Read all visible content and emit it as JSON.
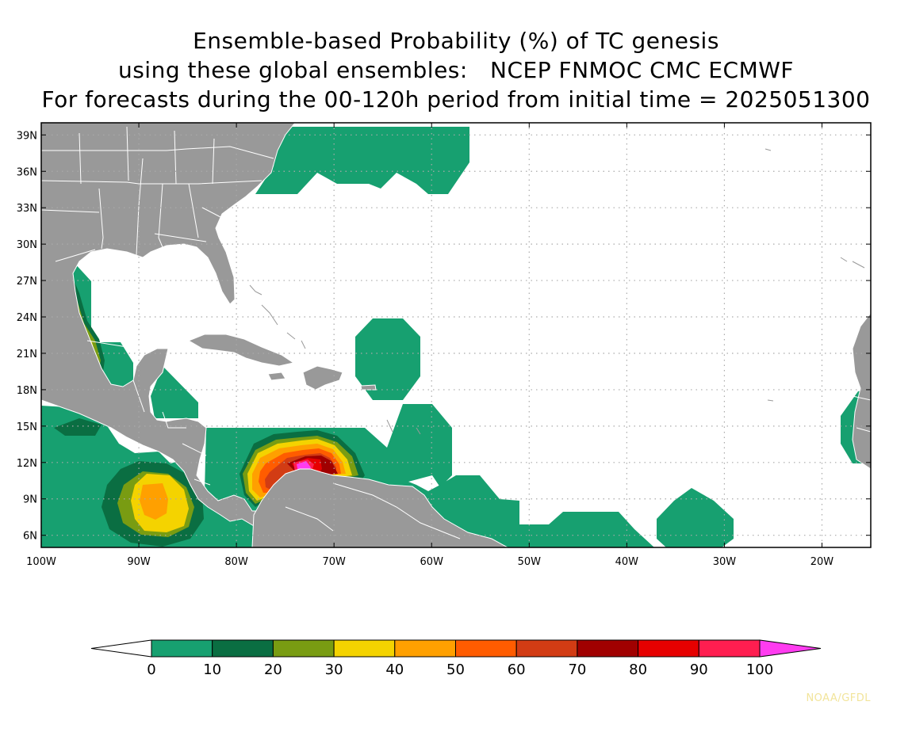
{
  "title": {
    "line1": "Ensemble-based Probability (%) of TC genesis",
    "line2": "using these global ensembles:   NCEP FNMOC CMC ECMWF",
    "line3": "For forecasts during the 00-120h period from initial time = 2025051300"
  },
  "map": {
    "lon_range": [
      -100,
      -15
    ],
    "lat_range": [
      5,
      40
    ],
    "lat_ticks": [
      {
        "value": 39,
        "label": "39N"
      },
      {
        "value": 36,
        "label": "36N"
      },
      {
        "value": 33,
        "label": "33N"
      },
      {
        "value": 30,
        "label": "30N"
      },
      {
        "value": 27,
        "label": "27N"
      },
      {
        "value": 24,
        "label": "24N"
      },
      {
        "value": 21,
        "label": "21N"
      },
      {
        "value": 18,
        "label": "18N"
      },
      {
        "value": 15,
        "label": "15N"
      },
      {
        "value": 12,
        "label": "12N"
      },
      {
        "value": 9,
        "label": "9N"
      },
      {
        "value": 6,
        "label": "6N"
      }
    ],
    "lon_ticks": [
      {
        "value": -100,
        "label": "100W"
      },
      {
        "value": -90,
        "label": "90W"
      },
      {
        "value": -80,
        "label": "80W"
      },
      {
        "value": -70,
        "label": "70W"
      },
      {
        "value": -60,
        "label": "60W"
      },
      {
        "value": -50,
        "label": "50W"
      },
      {
        "value": -40,
        "label": "40W"
      },
      {
        "value": -30,
        "label": "30W"
      },
      {
        "value": -20,
        "label": "20W"
      }
    ],
    "grid": true,
    "colors": {
      "land": "#999999",
      "ocean": "#ffffff",
      "border": "#ffffff",
      "grid": "#aaaaaa"
    }
  },
  "colorbar": {
    "levels": [
      {
        "label": "0",
        "color": "#17a070"
      },
      {
        "label": "10",
        "color": "#0a6e42"
      },
      {
        "label": "20",
        "color": "#799c12"
      },
      {
        "label": "30",
        "color": "#f4d300"
      },
      {
        "label": "40",
        "color": "#ffa000"
      },
      {
        "label": "50",
        "color": "#ff5c00"
      },
      {
        "label": "60",
        "color": "#d23c14"
      },
      {
        "label": "70",
        "color": "#a00000"
      },
      {
        "label": "80",
        "color": "#e60000"
      },
      {
        "label": "90",
        "color": "#ff1e50"
      },
      {
        "label": "100",
        "color": "#ff3cf0"
      }
    ],
    "low_color": "#ffffff",
    "high_color": "#ff3cf0"
  },
  "credit": "NOAA/GFDL"
}
